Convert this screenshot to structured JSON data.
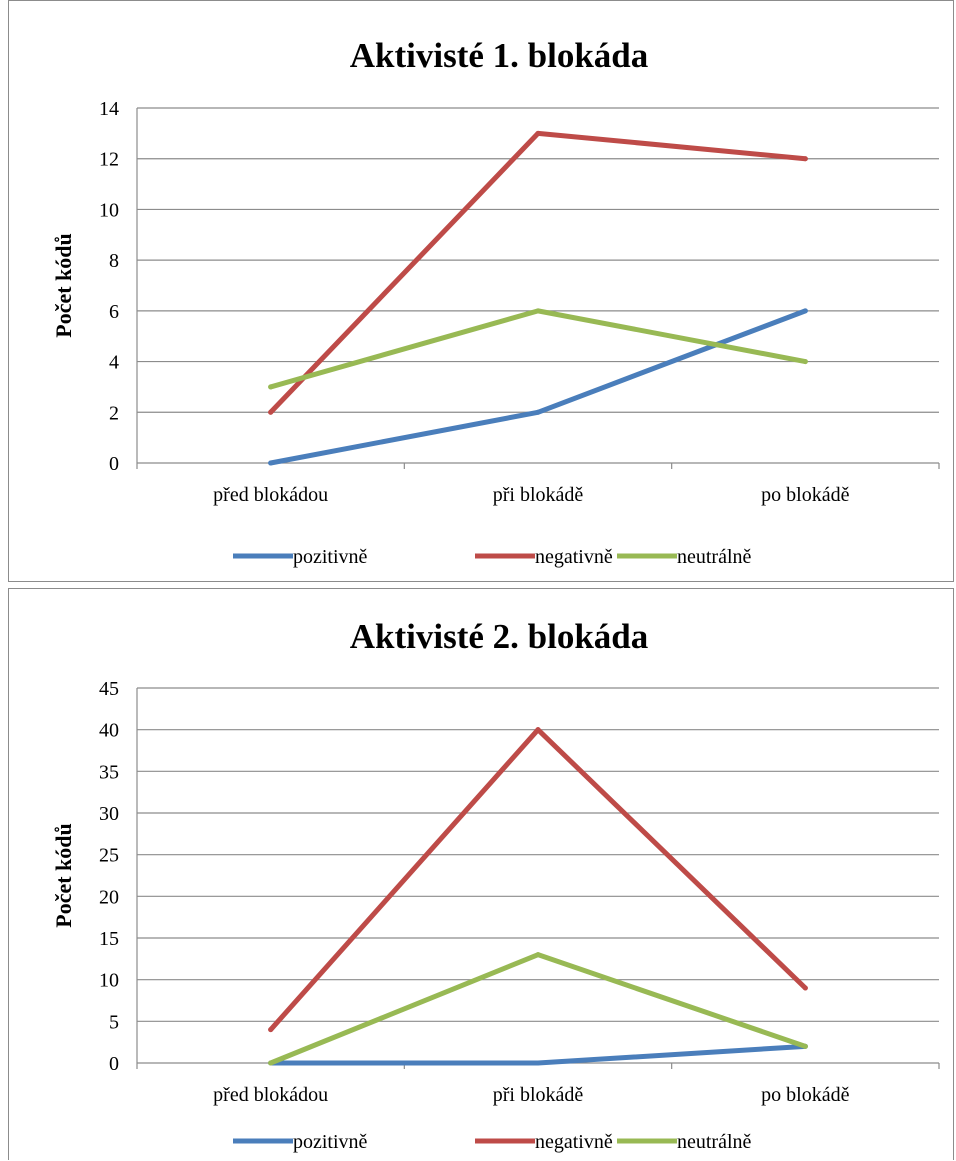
{
  "chart_data": [
    {
      "type": "line",
      "title": "Aktivisté 1. blokáda",
      "xlabel": "",
      "ylabel": "Počet kódů",
      "categories": [
        "před blokádou",
        "při blokádě",
        "po blokádě"
      ],
      "ylim": [
        0,
        14
      ],
      "yticks": [
        0,
        2,
        4,
        6,
        8,
        10,
        12,
        14
      ],
      "grid": "horizontal",
      "legend": "bottom",
      "series": [
        {
          "name": "pozitivně",
          "color": "#4a7ebb",
          "values": [
            0,
            2,
            6
          ]
        },
        {
          "name": "negativně",
          "color": "#be4b48",
          "values": [
            2,
            13,
            12
          ]
        },
        {
          "name": "neutrálně",
          "color": "#98b954",
          "values": [
            3,
            6,
            4
          ]
        }
      ]
    },
    {
      "type": "line",
      "title": "Aktivisté 2. blokáda",
      "xlabel": "",
      "ylabel": "Počet kódů",
      "categories": [
        "před blokádou",
        "při blokádě",
        "po blokádě"
      ],
      "ylim": [
        0,
        45
      ],
      "yticks": [
        0,
        5,
        10,
        15,
        20,
        25,
        30,
        35,
        40,
        45
      ],
      "grid": "horizontal",
      "legend": "bottom",
      "series": [
        {
          "name": "pozitivně",
          "color": "#4a7ebb",
          "values": [
            0,
            0,
            2
          ]
        },
        {
          "name": "negativně",
          "color": "#be4b48",
          "values": [
            4,
            40,
            9
          ]
        },
        {
          "name": "neutrálně",
          "color": "#98b954",
          "values": [
            0,
            13,
            2
          ]
        }
      ]
    }
  ]
}
